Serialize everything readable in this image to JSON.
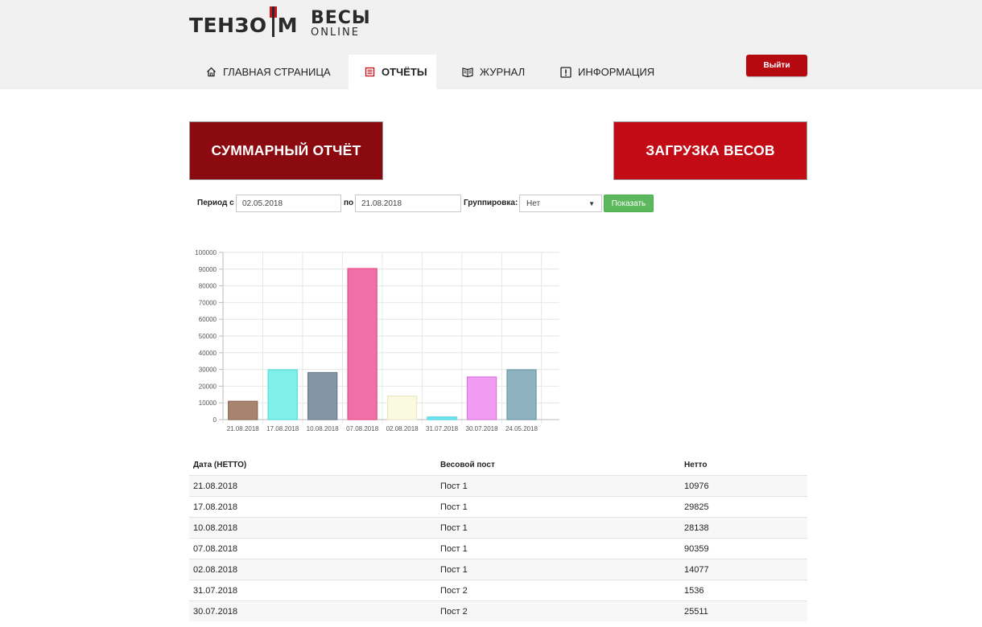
{
  "brand": {
    "logo_left": "ТЕНЗО",
    "logo_right": "М",
    "title_line1": "ВЕСЫ",
    "title_line2": "ONLINE"
  },
  "nav": {
    "items": [
      {
        "label": "ГЛАВНАЯ СТРАНИЦА",
        "icon": "home-icon"
      },
      {
        "label": "ОТЧЁТЫ",
        "icon": "report-icon",
        "active": true
      },
      {
        "label": "ЖУРНАЛ",
        "icon": "book-icon"
      },
      {
        "label": "ИНФОРМАЦИЯ",
        "icon": "info-icon"
      }
    ],
    "logout_label": "Выйти"
  },
  "actions": {
    "summary_label": "СУММАРНЫЙ ОТЧЁТ",
    "load_label": "ЗАГРУЗКА ВЕСОВ"
  },
  "filters": {
    "period_from_label": "Период с",
    "period_from_value": "02.05.2018",
    "period_to_label": "по",
    "period_to_value": "21.08.2018",
    "grouping_label": "Группировка:",
    "grouping_value": "Нет",
    "show_label": "Показать"
  },
  "colors": {
    "header_bg": "#f1f1f1",
    "summary_btn": "#8a0a10",
    "load_btn": "#c20b14",
    "logout_btn": "#b5080f",
    "show_btn": "#5cb85c",
    "logo_accent": "#c4161c"
  },
  "chart_data": {
    "type": "bar",
    "categories": [
      "21.08.2018",
      "17.08.2018",
      "10.08.2018",
      "07.08.2018",
      "02.08.2018",
      "31.07.2018",
      "30.07.2018",
      "24.05.2018"
    ],
    "values": [
      10976,
      29825,
      28138,
      90359,
      14077,
      1536,
      25511,
      29800
    ],
    "bar_colors": [
      "#a8836d",
      "#7ff0ec",
      "#8495a6",
      "#f06fa6",
      "#fafae0",
      "#71e6f0",
      "#f19cf2",
      "#8db3c0"
    ],
    "bar_strokes": [
      "#8c6a55",
      "#55dcd8",
      "#6a7b8c",
      "#e2508c",
      "#e8e8c0",
      "#4fd2de",
      "#d878dc",
      "#6f98a6"
    ],
    "yticks": [
      0,
      10000,
      20000,
      30000,
      40000,
      50000,
      60000,
      70000,
      80000,
      90000,
      100000
    ],
    "ylim": [
      0,
      100000
    ],
    "grid": true
  },
  "table": {
    "headers": [
      "Дата (НЕТТО)",
      "Весовой пост",
      "Нетто"
    ],
    "rows": [
      [
        "21.08.2018",
        "Пост 1",
        "10976"
      ],
      [
        "17.08.2018",
        "Пост 1",
        "29825"
      ],
      [
        "10.08.2018",
        "Пост 1",
        "28138"
      ],
      [
        "07.08.2018",
        "Пост 1",
        "90359"
      ],
      [
        "02.08.2018",
        "Пост 1",
        "14077"
      ],
      [
        "31.07.2018",
        "Пост 2",
        "1536"
      ],
      [
        "30.07.2018",
        "Пост 2",
        "25511"
      ]
    ]
  }
}
